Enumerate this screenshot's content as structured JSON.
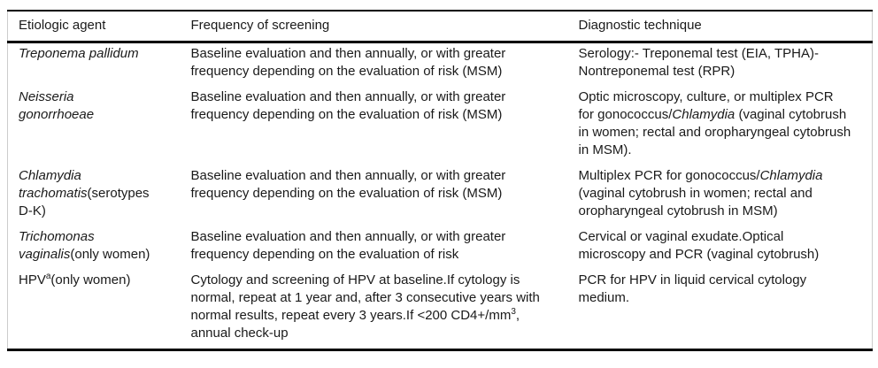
{
  "table": {
    "columns": [
      "Etiologic agent",
      "Frequency of screening",
      "Diagnostic technique"
    ],
    "rows": [
      {
        "agent": [
          {
            "text": "Treponema pallidum",
            "style": "italic"
          }
        ],
        "frequency": [
          {
            "text": "Baseline evaluation and then annually, or with greater frequency depending on the evaluation of risk (MSM)",
            "style": "normal"
          }
        ],
        "diagnostic": [
          {
            "text": "Serology:- Treponemal test (EIA, TPHA)- Nontreponemal test (RPR)",
            "style": "normal"
          }
        ]
      },
      {
        "agent": [
          {
            "text": "Neisseria gonorrhoeae",
            "style": "italic"
          }
        ],
        "frequency": [
          {
            "text": "Baseline evaluation and then annually, or with greater frequency depending on the evaluation of risk (MSM)",
            "style": "normal"
          }
        ],
        "diagnostic": [
          {
            "text": "Optic microscopy, culture, or multiplex PCR for gonococcus/",
            "style": "normal"
          },
          {
            "text": "Chlamydia",
            "style": "italic"
          },
          {
            "text": " (vaginal cytobrush in women; rectal and oropharyngeal cytobrush in MSM).",
            "style": "normal"
          }
        ]
      },
      {
        "agent": [
          {
            "text": "Chlamydia trachomatis",
            "style": "italic"
          },
          {
            "text": "(serotypes D-K)",
            "style": "normal"
          }
        ],
        "frequency": [
          {
            "text": "Baseline evaluation and then annually, or with greater frequency depending on the evaluation of risk (MSM)",
            "style": "normal"
          }
        ],
        "diagnostic": [
          {
            "text": "Multiplex PCR for gonococcus/",
            "style": "normal"
          },
          {
            "text": "Chlamydia",
            "style": "italic"
          },
          {
            "text": " (vaginal cytobrush in women; rectal and oropharyngeal cytobrush in MSM)",
            "style": "normal"
          }
        ]
      },
      {
        "agent": [
          {
            "text": "Trichomonas vaginalis",
            "style": "italic"
          },
          {
            "text": "(only women)",
            "style": "normal"
          }
        ],
        "frequency": [
          {
            "text": "Baseline evaluation and then annually, or with greater frequency depending on the evaluation of risk",
            "style": "normal"
          }
        ],
        "diagnostic": [
          {
            "text": "Cervical or vaginal exudate.Optical microscopy and PCR (vaginal cytobrush)",
            "style": "normal"
          }
        ]
      },
      {
        "agent": [
          {
            "text": "HPV",
            "style": "normal"
          },
          {
            "text": "a",
            "style": "sup"
          },
          {
            "text": "(only women)",
            "style": "normal"
          }
        ],
        "frequency": [
          {
            "text": "Cytology and screening of HPV at baseline.If cytology is normal, repeat at 1 year and, after 3 consecutive years with normal results, repeat every 3 years.If <200 CD4+/mm",
            "style": "normal"
          },
          {
            "text": "3",
            "style": "sup"
          },
          {
            "text": ", annual check-up",
            "style": "normal"
          }
        ],
        "diagnostic": [
          {
            "text": "PCR for HPV in liquid cervical cytology medium.",
            "style": "normal"
          }
        ]
      }
    ],
    "colors": {
      "rule": "#000000",
      "side_border": "#cccccc",
      "text": "#1a1a1a",
      "background": "#ffffff"
    }
  }
}
